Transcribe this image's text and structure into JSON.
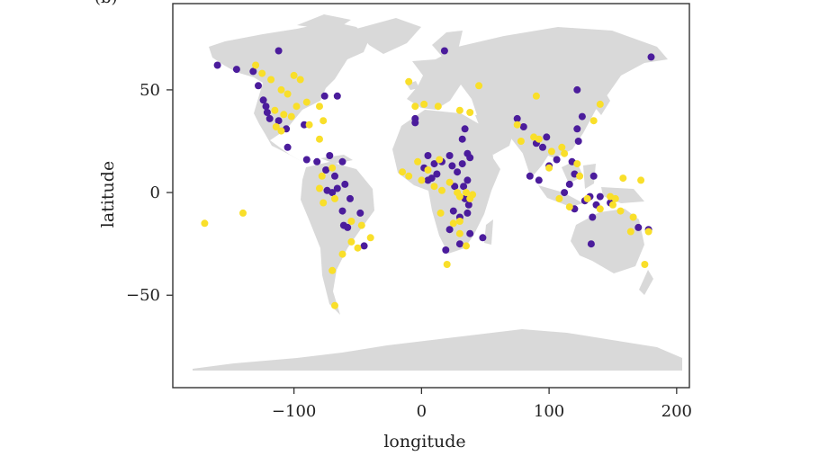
{
  "panel_label": "(b)",
  "chart_data": {
    "type": "scatter",
    "title": "",
    "xlabel": "longitude",
    "ylabel": "latitude",
    "xlim": [
      -195,
      210
    ],
    "ylim": [
      -95,
      92
    ],
    "x_ticks": [
      -100,
      0,
      100,
      200
    ],
    "y_ticks": [
      -50,
      0,
      50
    ],
    "x_tick_labels": [
      "−100",
      "0",
      "100",
      "200"
    ],
    "y_tick_labels": [
      "−50",
      "0",
      "50"
    ],
    "grid": false,
    "legend": "none",
    "background_map": "world land masses",
    "colors": {
      "land": "#d9d9d9",
      "purple": "#4b1c9c",
      "yellow": "#f9df2a",
      "frame": "#333333"
    },
    "series": [
      {
        "color": "#4b1c9c",
        "points": [
          [
            -160,
            62
          ],
          [
            -145,
            60
          ],
          [
            -132,
            59
          ],
          [
            -112,
            69
          ],
          [
            -128,
            52
          ],
          [
            -124,
            45
          ],
          [
            -122,
            42
          ],
          [
            -121,
            39
          ],
          [
            -119,
            36
          ],
          [
            -112,
            35
          ],
          [
            -106,
            31
          ],
          [
            -92,
            33
          ],
          [
            -105,
            22
          ],
          [
            -76,
            47
          ],
          [
            -66,
            47
          ],
          [
            -90,
            16
          ],
          [
            -82,
            15
          ],
          [
            -72,
            18
          ],
          [
            -62,
            15
          ],
          [
            -75,
            11
          ],
          [
            -68,
            8
          ],
          [
            -60,
            4
          ],
          [
            -74,
            1
          ],
          [
            -70,
            0
          ],
          [
            -66,
            2
          ],
          [
            -56,
            -3
          ],
          [
            -48,
            -10
          ],
          [
            -62,
            -9
          ],
          [
            -61,
            -16
          ],
          [
            -58,
            -17
          ],
          [
            -45,
            -26
          ],
          [
            -5,
            36
          ],
          [
            -5,
            34
          ],
          [
            5,
            18
          ],
          [
            2,
            12
          ],
          [
            5,
            6
          ],
          [
            8,
            7
          ],
          [
            10,
            14
          ],
          [
            12,
            9
          ],
          [
            16,
            15
          ],
          [
            22,
            18
          ],
          [
            24,
            13
          ],
          [
            32,
            14
          ],
          [
            28,
            10
          ],
          [
            36,
            19
          ],
          [
            38,
            17
          ],
          [
            32,
            26
          ],
          [
            34,
            31
          ],
          [
            36,
            6
          ],
          [
            33,
            3
          ],
          [
            26,
            3
          ],
          [
            34,
            -3
          ],
          [
            37,
            -6
          ],
          [
            36,
            -10
          ],
          [
            30,
            -12
          ],
          [
            25,
            -9
          ],
          [
            22,
            -18
          ],
          [
            19,
            -28
          ],
          [
            30,
            -25
          ],
          [
            38,
            -20
          ],
          [
            48,
            -22
          ],
          [
            18,
            69
          ],
          [
            75,
            36
          ],
          [
            80,
            32
          ],
          [
            90,
            24
          ],
          [
            95,
            22
          ],
          [
            98,
            27
          ],
          [
            85,
            8
          ],
          [
            92,
            6
          ],
          [
            100,
            13
          ],
          [
            106,
            16
          ],
          [
            116,
            4
          ],
          [
            112,
            0
          ],
          [
            120,
            9
          ],
          [
            118,
            15
          ],
          [
            123,
            25
          ],
          [
            126,
            37
          ],
          [
            122,
            31
          ],
          [
            122,
            50
          ],
          [
            128,
            -4
          ],
          [
            132,
            -2
          ],
          [
            135,
            8
          ],
          [
            140,
            -2
          ],
          [
            148,
            -5
          ],
          [
            137,
            -6
          ],
          [
            134,
            -12
          ],
          [
            120,
            -8
          ],
          [
            133,
            -25
          ],
          [
            178,
            -18
          ],
          [
            180,
            66
          ],
          [
            170,
            -17
          ]
        ]
      },
      {
        "color": "#f9df2a",
        "points": [
          [
            -170,
            -15
          ],
          [
            -140,
            -10
          ],
          [
            -130,
            62
          ],
          [
            -125,
            58
          ],
          [
            -118,
            55
          ],
          [
            -110,
            50
          ],
          [
            -100,
            57
          ],
          [
            -95,
            55
          ],
          [
            -105,
            48
          ],
          [
            -98,
            42
          ],
          [
            -90,
            44
          ],
          [
            -115,
            40
          ],
          [
            -108,
            38
          ],
          [
            -102,
            37
          ],
          [
            -114,
            32
          ],
          [
            -110,
            30
          ],
          [
            -80,
            42
          ],
          [
            -88,
            33
          ],
          [
            -77,
            35
          ],
          [
            -80,
            26
          ],
          [
            -70,
            12
          ],
          [
            -78,
            8
          ],
          [
            -80,
            2
          ],
          [
            -77,
            -5
          ],
          [
            -68,
            -3
          ],
          [
            -55,
            -14
          ],
          [
            -47,
            -16
          ],
          [
            -40,
            -22
          ],
          [
            -55,
            -24
          ],
          [
            -50,
            -27
          ],
          [
            -62,
            -30
          ],
          [
            -70,
            -38
          ],
          [
            -68,
            -55
          ],
          [
            -10,
            54
          ],
          [
            -5,
            42
          ],
          [
            2,
            43
          ],
          [
            13,
            42
          ],
          [
            30,
            40
          ],
          [
            38,
            39
          ],
          [
            45,
            52
          ],
          [
            -15,
            10
          ],
          [
            -10,
            8
          ],
          [
            -3,
            15
          ],
          [
            0,
            6
          ],
          [
            5,
            11
          ],
          [
            10,
            3
          ],
          [
            14,
            16
          ],
          [
            16,
            1
          ],
          [
            22,
            5
          ],
          [
            28,
            0
          ],
          [
            30,
            -2
          ],
          [
            35,
            0
          ],
          [
            40,
            -1
          ],
          [
            38,
            -3
          ],
          [
            15,
            -10
          ],
          [
            25,
            -15
          ],
          [
            30,
            -20
          ],
          [
            35,
            -26
          ],
          [
            30,
            -14
          ],
          [
            20,
            -35
          ],
          [
            90,
            47
          ],
          [
            75,
            33
          ],
          [
            78,
            25
          ],
          [
            88,
            27
          ],
          [
            92,
            26
          ],
          [
            102,
            20
          ],
          [
            100,
            12
          ],
          [
            110,
            22
          ],
          [
            112,
            19
          ],
          [
            122,
            14
          ],
          [
            108,
            -3
          ],
          [
            116,
            -7
          ],
          [
            124,
            8
          ],
          [
            130,
            -3
          ],
          [
            140,
            43
          ],
          [
            135,
            35
          ],
          [
            140,
            -8
          ],
          [
            148,
            -2
          ],
          [
            150,
            -6
          ],
          [
            152,
            -3
          ],
          [
            156,
            -9
          ],
          [
            166,
            -12
          ],
          [
            172,
            6
          ],
          [
            175,
            -35
          ],
          [
            178,
            -19
          ],
          [
            158,
            7
          ],
          [
            164,
            -19
          ]
        ]
      }
    ]
  }
}
